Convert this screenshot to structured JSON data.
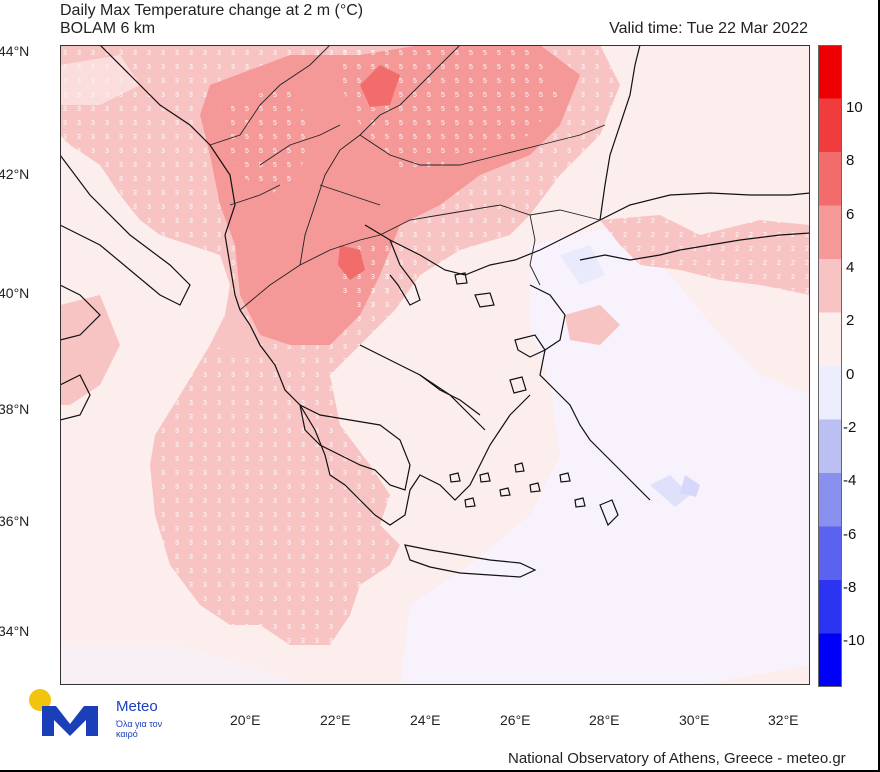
{
  "title": {
    "line1": "Daily Max Temperature change at 2 m (°C)",
    "line2": "BOLAM 6 km",
    "valid_time": "Valid time: Tue 22 Mar 2022"
  },
  "lat_ticks": [
    "44°N",
    "42°N",
    "40°N",
    "38°N",
    "36°N",
    "34°N"
  ],
  "lon_ticks": [
    "20°E",
    "22°E",
    "24°E",
    "26°E",
    "28°E",
    "30°E",
    "32°E"
  ],
  "colorbar": {
    "labels": [
      "10",
      "8",
      "6",
      "4",
      "2",
      "0",
      "-2",
      "-4",
      "-6",
      "-8",
      "-10"
    ],
    "colors": [
      "#ee0000",
      "#f03c3c",
      "#f26c6c",
      "#f59898",
      "#f8c3c3",
      "#fdeeee",
      "#eceefd",
      "#bbbff2",
      "#8a90ee",
      "#5a62ee",
      "#2b34f0",
      "#0000f8"
    ]
  },
  "brand": {
    "name": "Meteo",
    "tagline": "Όλα για τον καιρό",
    "accent_yellow": "#f2c40e",
    "accent_blue": "#1a3fb8"
  },
  "footer": "National Observatory of Athens, Greece - meteo.gr",
  "contour_labels": [
    "3",
    "5",
    "2"
  ]
}
